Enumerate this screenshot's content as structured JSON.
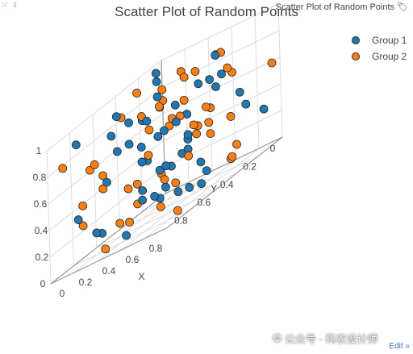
{
  "toolbar": {
    "left_icons": "⤫ ⇩",
    "link_text": "Scatter Plot of Random Points"
  },
  "footer": {
    "edit_label": "Edit »",
    "watermark": "公众号 · 码农设计师"
  },
  "colors": {
    "group1": "#1f77b4",
    "group2": "#ff7f0e",
    "marker_edge": "#2a2a2a",
    "grid": "#dcdcdc"
  },
  "chart_data": {
    "type": "scatter",
    "title": "Scatter Plot of Random Points",
    "xlabel": "X",
    "ylabel": "Y",
    "zlabel": "",
    "xlim": [
      0,
      1
    ],
    "ylim": [
      0,
      1
    ],
    "zlim": [
      0,
      1
    ],
    "x_ticks": [
      "0",
      "0.2",
      "0.4",
      "0.6",
      "0.8"
    ],
    "y_ticks": [
      "0",
      "0.2",
      "0.4",
      "0.6",
      "0.8"
    ],
    "z_ticks": [
      "0",
      "0.2",
      "0.4",
      "0.6",
      "0.8",
      "1"
    ],
    "legend_position": "top-right",
    "grid": true,
    "series": [
      {
        "name": "Group 1",
        "points": [
          [
            0.05,
            0.1,
            0.95
          ],
          [
            0.12,
            0.3,
            0.7
          ],
          [
            0.2,
            0.6,
            0.9
          ],
          [
            0.3,
            0.8,
            0.5
          ],
          [
            0.4,
            0.2,
            0.3
          ],
          [
            0.5,
            0.5,
            0.6
          ],
          [
            0.6,
            0.7,
            0.2
          ],
          [
            0.7,
            0.4,
            0.8
          ],
          [
            0.8,
            0.1,
            0.4
          ],
          [
            0.9,
            0.6,
            0.1
          ],
          [
            0.15,
            0.9,
            0.35
          ],
          [
            0.25,
            0.45,
            0.15
          ],
          [
            0.35,
            0.15,
            0.55
          ],
          [
            0.45,
            0.75,
            0.85
          ],
          [
            0.55,
            0.35,
            0.05
          ],
          [
            0.65,
            0.85,
            0.65
          ],
          [
            0.75,
            0.25,
            0.75
          ],
          [
            0.85,
            0.55,
            0.25
          ],
          [
            0.95,
            0.95,
            0.45
          ],
          [
            0.1,
            0.65,
            0.1
          ],
          [
            0.2,
            0.05,
            0.25
          ],
          [
            0.3,
            0.35,
            0.95
          ],
          [
            0.4,
            0.55,
            0.45
          ],
          [
            0.5,
            0.85,
            0.05
          ],
          [
            0.6,
            0.15,
            0.65
          ],
          [
            0.7,
            0.65,
            0.35
          ],
          [
            0.8,
            0.95,
            0.85
          ],
          [
            0.9,
            0.25,
            0.55
          ],
          [
            0.05,
            0.45,
            0.6
          ],
          [
            0.35,
            0.95,
            0.2
          ],
          [
            0.45,
            0.05,
            0.7
          ],
          [
            0.55,
            0.6,
            0.9
          ],
          [
            0.65,
            0.3,
            0.1
          ],
          [
            0.75,
            0.8,
            0.4
          ],
          [
            0.85,
            0.4,
            0.95
          ],
          [
            0.95,
            0.1,
            0.3
          ],
          [
            0.25,
            0.7,
            0.8
          ],
          [
            0.15,
            0.2,
            0.5
          ],
          [
            0.5,
            0.3,
            0.4
          ],
          [
            0.6,
            0.5,
            0.75
          ],
          [
            0.4,
            0.4,
            0.15
          ],
          [
            0.7,
            0.9,
            0.55
          ],
          [
            0.3,
            0.6,
            0.65
          ],
          [
            0.8,
            0.7,
            0.15
          ],
          [
            0.9,
            0.8,
            0.7
          ],
          [
            0.1,
            0.85,
            0.9
          ],
          [
            0.2,
            0.25,
            0.05
          ],
          [
            0.58,
            0.12,
            0.88
          ],
          [
            0.48,
            0.68,
            0.28
          ],
          [
            0.68,
            0.48,
            0.48
          ]
        ]
      },
      {
        "name": "Group 2",
        "points": [
          [
            0.08,
            0.95,
            0.8
          ],
          [
            0.18,
            0.4,
            0.95
          ],
          [
            0.28,
            0.1,
            0.65
          ],
          [
            0.38,
            0.7,
            0.35
          ],
          [
            0.48,
            0.2,
            0.85
          ],
          [
            0.58,
            0.9,
            0.15
          ],
          [
            0.68,
            0.3,
            0.45
          ],
          [
            0.78,
            0.6,
            0.95
          ],
          [
            0.88,
            0.8,
            0.25
          ],
          [
            0.98,
            0.05,
            0.6
          ],
          [
            0.02,
            0.55,
            0.4
          ],
          [
            0.12,
            0.15,
            0.2
          ],
          [
            0.22,
            0.75,
            0.55
          ],
          [
            0.32,
            0.35,
            0.75
          ],
          [
            0.42,
            0.95,
            0.05
          ],
          [
            0.52,
            0.45,
            0.65
          ],
          [
            0.62,
            0.05,
            0.35
          ],
          [
            0.72,
            0.85,
            0.75
          ],
          [
            0.82,
            0.25,
            0.1
          ],
          [
            0.92,
            0.65,
            0.5
          ],
          [
            0.06,
            0.3,
            0.1
          ],
          [
            0.16,
            0.8,
            0.65
          ],
          [
            0.26,
            0.5,
            0.3
          ],
          [
            0.36,
            0.2,
            0.9
          ],
          [
            0.46,
            0.6,
            0.5
          ],
          [
            0.56,
            0.75,
            0.85
          ],
          [
            0.66,
            0.1,
            0.05
          ],
          [
            0.76,
            0.4,
            0.6
          ],
          [
            0.86,
            0.9,
            0.9
          ],
          [
            0.96,
            0.35,
            0.2
          ],
          [
            0.04,
            0.75,
            0.25
          ],
          [
            0.14,
            0.5,
            0.85
          ],
          [
            0.24,
            0.95,
            0.45
          ],
          [
            0.34,
            0.05,
            0.4
          ],
          [
            0.44,
            0.3,
            0.6
          ],
          [
            0.54,
            0.55,
            0.25
          ],
          [
            0.64,
            0.65,
            0.95
          ],
          [
            0.74,
            0.15,
            0.7
          ],
          [
            0.84,
            0.45,
            0.4
          ],
          [
            0.94,
            0.85,
            0.05
          ],
          [
            0.5,
            0.1,
            0.5
          ],
          [
            0.6,
            0.4,
            0.3
          ],
          [
            0.7,
            0.2,
            0.9
          ],
          [
            0.3,
            0.9,
            0.7
          ],
          [
            0.4,
            0.8,
            0.15
          ],
          [
            0.2,
            0.2,
            0.75
          ],
          [
            0.8,
            0.55,
            0.55
          ],
          [
            0.9,
            0.35,
            0.8
          ],
          [
            0.1,
            0.05,
            0.5
          ],
          [
            0.65,
            0.7,
            0.1
          ]
        ]
      }
    ]
  }
}
